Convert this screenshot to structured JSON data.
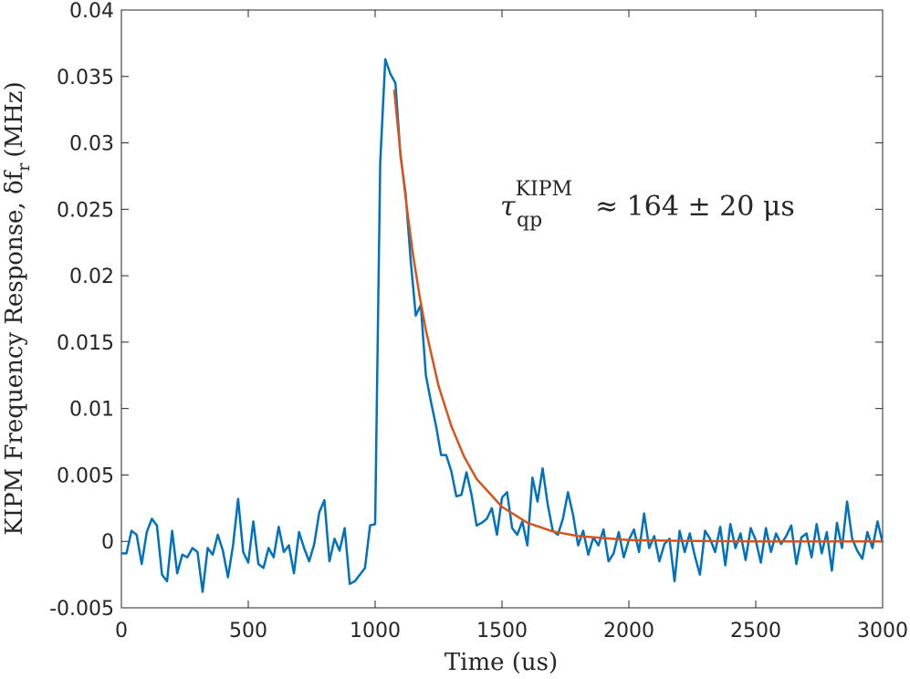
{
  "chart_data": {
    "type": "line",
    "x_label": "Time (us)",
    "y_label": {
      "main": "KIPM Frequency Response, δf",
      "subscript": "r",
      "unit": "(MHz)"
    },
    "annotation": {
      "symbol": "τ",
      "subscript": "qp",
      "superscript": "KIPM",
      "text": "≈ 164 ± 20 μs"
    },
    "xlim": [
      0,
      3000
    ],
    "xticks": [
      0,
      500,
      1000,
      1500,
      2000,
      2500,
      3000
    ],
    "ylim": [
      -0.005,
      0.04
    ],
    "yticks": [
      -0.005,
      0,
      0.005,
      0.01,
      0.015,
      0.02,
      0.025,
      0.03,
      0.035,
      0.04
    ],
    "series": [
      {
        "color": "#0072bd",
        "x": [
          0,
          20,
          40,
          60,
          80,
          100,
          120,
          140,
          160,
          180,
          200,
          220,
          240,
          260,
          280,
          300,
          320,
          340,
          360,
          380,
          400,
          420,
          440,
          460,
          480,
          500,
          520,
          540,
          560,
          580,
          600,
          620,
          640,
          660,
          680,
          700,
          720,
          740,
          760,
          780,
          800,
          820,
          840,
          860,
          880,
          900,
          920,
          940,
          960,
          980,
          1000,
          1020,
          1040,
          1060,
          1080,
          1100,
          1120,
          1140,
          1160,
          1180,
          1200,
          1220,
          1240,
          1260,
          1280,
          1300,
          1320,
          1340,
          1360,
          1380,
          1400,
          1420,
          1440,
          1460,
          1480,
          1500,
          1520,
          1540,
          1560,
          1580,
          1600,
          1620,
          1640,
          1660,
          1680,
          1700,
          1720,
          1740,
          1760,
          1780,
          1800,
          1820,
          1840,
          1860,
          1880,
          1900,
          1920,
          1940,
          1960,
          1980,
          2000,
          2020,
          2040,
          2060,
          2080,
          2100,
          2120,
          2140,
          2160,
          2180,
          2200,
          2220,
          2240,
          2260,
          2280,
          2300,
          2320,
          2340,
          2360,
          2380,
          2400,
          2420,
          2440,
          2460,
          2480,
          2500,
          2520,
          2540,
          2560,
          2580,
          2600,
          2620,
          2640,
          2660,
          2680,
          2700,
          2720,
          2740,
          2760,
          2780,
          2800,
          2820,
          2840,
          2860,
          2880,
          2900,
          2920,
          2940,
          2960,
          2980,
          3000
        ],
        "values": [
          -0.0009,
          -0.0009,
          0.0008,
          0.0005,
          -0.0017,
          0.0007,
          0.0017,
          0.0012,
          -0.0025,
          -0.003,
          0.0008,
          -0.0024,
          -0.001,
          -0.0012,
          -0.0005,
          -0.0008,
          -0.0038,
          -0.0005,
          -0.001,
          0.0005,
          -0.0007,
          -0.0027,
          -0.0003,
          0.0032,
          -0.0008,
          -0.0016,
          0.0015,
          -0.0017,
          -0.002,
          -0.0005,
          -0.0012,
          0.0011,
          -0.0008,
          -0.0003,
          -0.0024,
          0.0007,
          -0.0005,
          -0.0015,
          -0.0002,
          0.0022,
          0.0031,
          -0.0015,
          0.0002,
          -0.0007,
          0.001,
          -0.0032,
          -0.003,
          -0.0025,
          -0.002,
          0.0012,
          0.0013,
          0.0285,
          0.0363,
          0.0352,
          0.0345,
          0.029,
          0.0262,
          0.0212,
          0.017,
          0.0178,
          0.0125,
          0.0105,
          0.0087,
          0.0065,
          0.0065,
          0.0053,
          0.0034,
          0.0035,
          0.0052,
          0.0035,
          0.0012,
          0.0014,
          0.0017,
          0.0025,
          0.0005,
          0.0033,
          0.0037,
          0.001,
          0.0005,
          0.0015,
          -0.0003,
          0.0048,
          0.003,
          0.0055,
          0.0028,
          0.0008,
          0.0005,
          0.0017,
          0.0037,
          0.002,
          -0.0003,
          0.0008,
          -0.001,
          0.0003,
          -0.0003,
          0.0009,
          -0.0015,
          -0.0009,
          0.0007,
          -0.0012,
          0.0001,
          0.0009,
          -0.0008,
          0.0021,
          -0.0005,
          0.0004,
          -0.0015,
          -0.0002,
          0.0002,
          -0.003,
          0.0008,
          -0.0008,
          0.0006,
          -0.0011,
          -0.0025,
          0.0008,
          0.0002,
          -0.0008,
          0.0011,
          -0.0018,
          0.0013,
          -0.0005,
          0.0006,
          -0.0014,
          0.001,
          0.0001,
          -0.0016,
          0.001,
          -0.0008,
          0.0006,
          -0.0002,
          0.0004,
          0.0012,
          -0.0017,
          0.0003,
          0.0006,
          -0.0012,
          0.0013,
          -0.0009,
          0.0007,
          -0.0022,
          0.0014,
          -0.0005,
          0.003,
          0.0002,
          -0.0007,
          -0.0013,
          0.0007,
          -0.0005,
          0.0015,
          -0.0001
        ]
      },
      {
        "color": "#d95319",
        "x": [
          1075,
          1100,
          1125,
          1150,
          1175,
          1200,
          1250,
          1300,
          1350,
          1400,
          1500,
          1600,
          1700,
          1800,
          2000,
          2200,
          2500,
          3000
        ],
        "values": [
          0.034,
          0.0292,
          0.0251,
          0.0215,
          0.0185,
          0.0159,
          0.0117,
          0.0087,
          0.0064,
          0.0047,
          0.0026,
          0.0014,
          0.00075,
          0.0004,
          0.0001,
          4e-05,
          0,
          0
        ]
      }
    ]
  }
}
